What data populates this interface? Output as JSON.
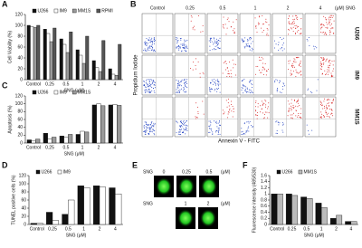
{
  "chart_data": [
    {
      "type": "bar",
      "panel": "A",
      "y_label": "Cell Viability (%)",
      "x_label": "SNG (μM)",
      "categories": [
        "Control",
        "0.25",
        "0.5",
        "1",
        "2",
        "4"
      ],
      "series": [
        {
          "name": "U266",
          "color": "#111111",
          "values": [
            100,
            93,
            75,
            55,
            35,
            20
          ]
        },
        {
          "name": "IM9",
          "color": "#ffffff",
          "values": [
            98,
            85,
            65,
            45,
            22,
            10
          ]
        },
        {
          "name": "MM1S",
          "color": "#9a9a9a",
          "values": [
            96,
            70,
            50,
            30,
            15,
            8
          ]
        },
        {
          "name": "RPMI",
          "color": "#555555",
          "values": [
            100,
            95,
            88,
            80,
            72,
            65
          ]
        }
      ],
      "ylim": [
        0,
        120
      ],
      "yticks": [
        0,
        20,
        40,
        60,
        80,
        100,
        120
      ]
    },
    {
      "type": "bar",
      "panel": "C",
      "y_label": "Apoptosis (%)",
      "x_label": "SNG (μM)",
      "categories": [
        "Control",
        "0.25",
        "0.5",
        "1",
        "2",
        "4"
      ],
      "series": [
        {
          "name": "U266",
          "color": "#111111",
          "values": [
            8,
            25,
            18,
            22,
            97,
            97
          ]
        },
        {
          "name": "IM9",
          "color": "#ffffff",
          "values": [
            5,
            10,
            15,
            30,
            100,
            98
          ]
        },
        {
          "name": "MM1S",
          "color": "#9a9a9a",
          "values": [
            10,
            15,
            22,
            28,
            95,
            96
          ]
        }
      ],
      "ylim": [
        0,
        120
      ],
      "yticks": [
        0,
        20,
        40,
        60,
        80,
        100,
        120
      ]
    },
    {
      "type": "bar",
      "panel": "D",
      "y_label": "TUNEL positive cells (%)",
      "x_label": "SNG (μM)",
      "categories": [
        "Control",
        "0.25",
        "0.5",
        "1",
        "2",
        "4"
      ],
      "series": [
        {
          "name": "U266",
          "color": "#111111",
          "values": [
            3,
            30,
            25,
            95,
            95,
            90
          ]
        },
        {
          "name": "IM9",
          "color": "#ffffff",
          "values": [
            3,
            10,
            60,
            90,
            92,
            75
          ]
        }
      ],
      "ylim": [
        0,
        120
      ],
      "yticks": [
        0,
        20,
        40,
        60,
        80,
        100,
        120
      ]
    },
    {
      "type": "bar",
      "panel": "F",
      "y_label": "Fluorescence intensity (485/530)",
      "x_label": "SNG (μM)",
      "categories": [
        "Control",
        "0.25",
        "0.5",
        "1",
        "2",
        "4"
      ],
      "series": [
        {
          "name": "U266",
          "color": "#111111",
          "values": [
            1.0,
            1.0,
            0.9,
            0.7,
            0.2,
            0.1
          ]
        },
        {
          "name": "MM1S",
          "color": "#bbbbbb",
          "values": [
            1.0,
            0.95,
            0.85,
            0.55,
            0.3,
            0.1
          ]
        }
      ],
      "ylim": [
        0,
        1.6
      ],
      "yticks": [
        0,
        0.2,
        0.4,
        0.6,
        0.8,
        1,
        1.2,
        1.4,
        1.6
      ]
    }
  ],
  "flow_panel": {
    "letter": "B",
    "columns": [
      "Control",
      "0.25",
      "0.5",
      "1",
      "2",
      "4"
    ],
    "unit": "(μM) SNG",
    "rows": [
      "U266",
      "IM9",
      "MM1S"
    ],
    "y_label": "Propidium Iodide",
    "x_label": "Annexin V - FITC"
  },
  "image_panel": {
    "letter": "E",
    "rows": [
      {
        "label": "SNG",
        "doses": [
          "0",
          "0.25",
          "0.5"
        ],
        "unit": "(μM)"
      },
      {
        "label": "SNG",
        "doses": [
          "1",
          "2"
        ],
        "unit": "(μM)"
      }
    ]
  }
}
